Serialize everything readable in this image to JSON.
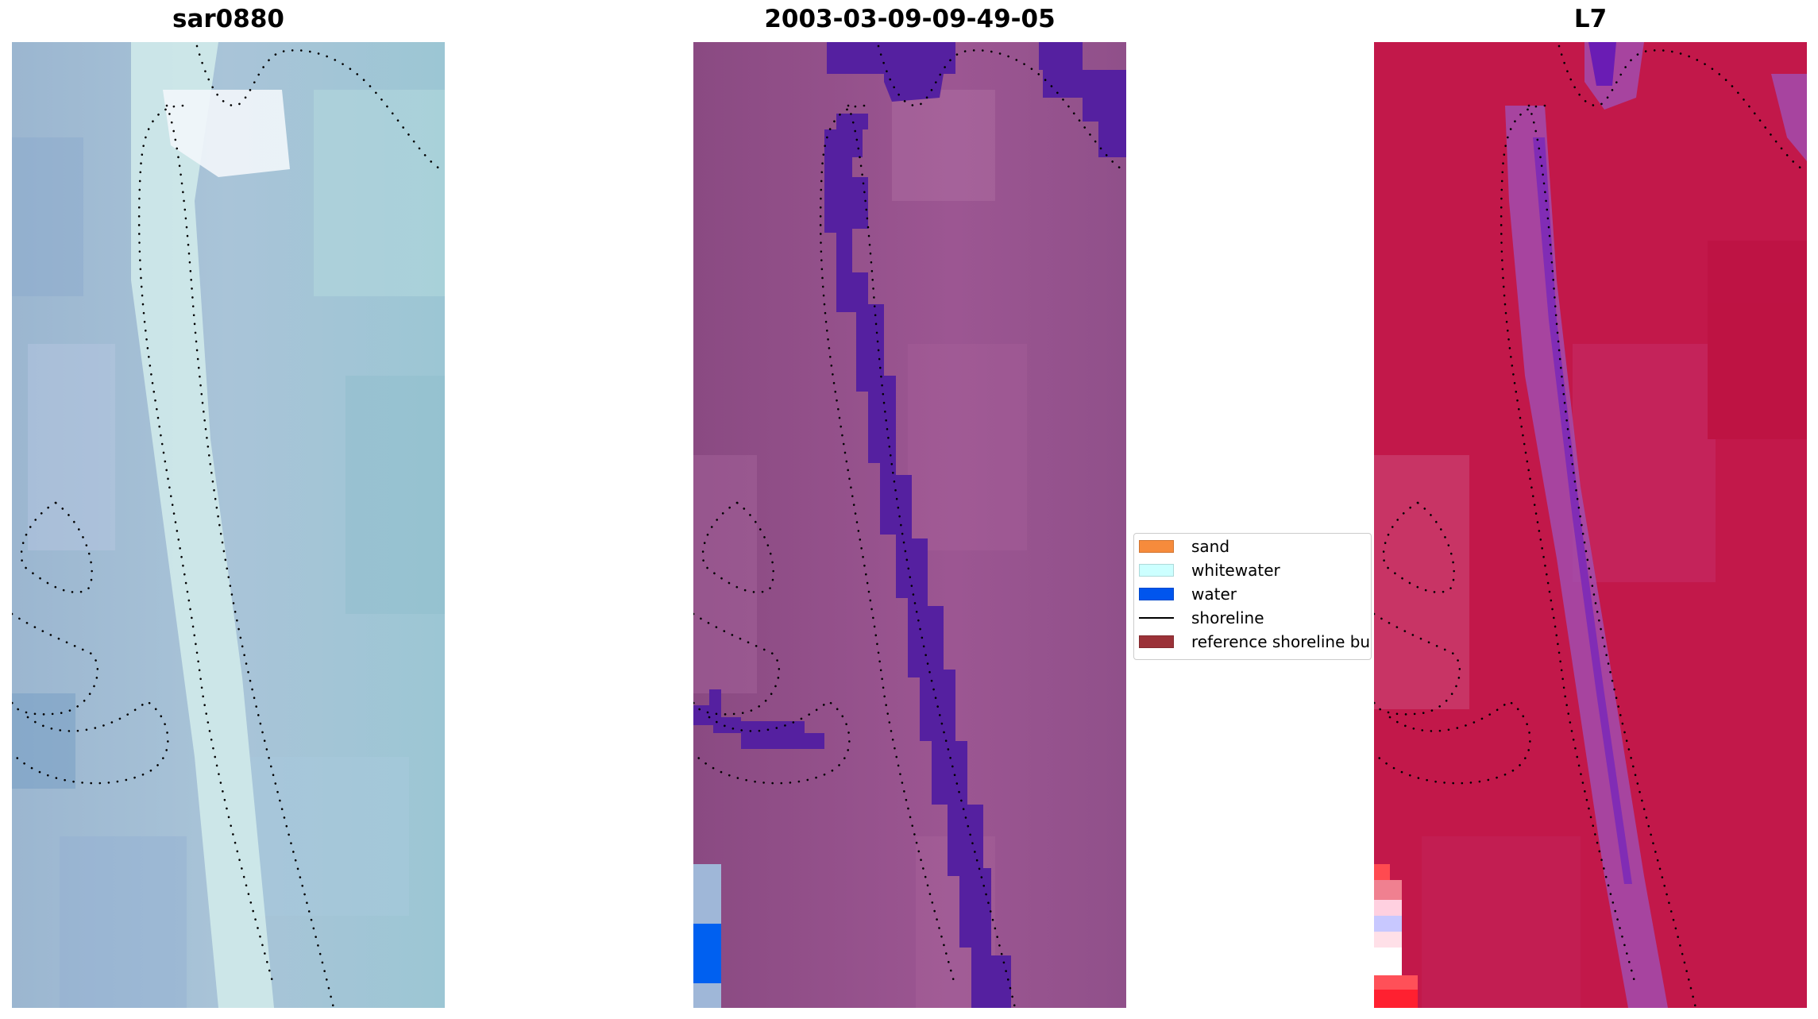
{
  "panels": [
    {
      "title": "sar0880"
    },
    {
      "title": "2003-03-09-09-49-05"
    },
    {
      "title": "L7"
    }
  ],
  "legend": {
    "items": [
      {
        "label": "sand",
        "color": "#f68b3c",
        "kind": "patch"
      },
      {
        "label": "whitewater",
        "color": "#ccffff",
        "kind": "patch"
      },
      {
        "label": "water",
        "color": "#0055ee",
        "kind": "patch"
      },
      {
        "label": "shoreline",
        "color": "#000000",
        "kind": "line"
      },
      {
        "label": "reference shoreline bu",
        "color": "#9b3238",
        "kind": "patch"
      }
    ]
  },
  "colors": {
    "rgb_base": "#8fb3cf",
    "rgb_channel": "#bfe6e6",
    "class_base": "#8e4c86",
    "class_band": "#5520a0",
    "class_water": "#0060f0",
    "nir_base": "#c2184a",
    "nir_band": "#a050b4",
    "shoreline": "#000000"
  }
}
